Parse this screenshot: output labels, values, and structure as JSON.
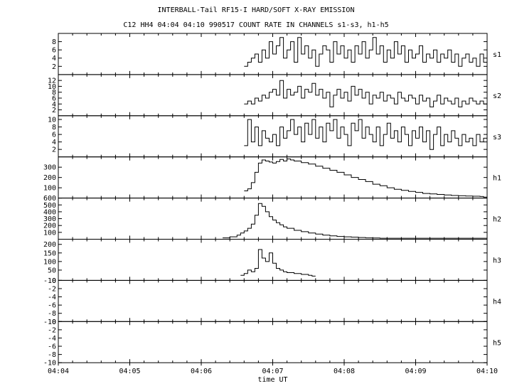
{
  "title_line1": "INTERBALL-Tail RF15-I HARD/SOFT X-RAY EMISSION",
  "title_line2": "C12 HH4 04:04 04:10 990517  COUNT RATE IN CHANNELS s1-s3, h1-h5",
  "chart_data": {
    "type": "line",
    "title": "INTERBALL-Tail RF15-I HARD/SOFT X-RAY EMISSION",
    "subtitle": "C12 HH4 04:04 04:10 990517  COUNT RATE IN CHANNELS s1-s3, h1-h5",
    "xlabel": "time UT",
    "x_ticks": [
      "04:04",
      "04:05",
      "04:06",
      "04:07",
      "04:08",
      "04:09",
      "04:10"
    ],
    "xlim_minutes": [
      0,
      6
    ],
    "panels": [
      {
        "name": "s1",
        "ylim": [
          0,
          10
        ],
        "yticks": [
          "2",
          "4",
          "6",
          "8"
        ],
        "x": [
          2.6,
          2.65,
          2.7,
          2.75,
          2.8,
          2.85,
          2.9,
          2.95,
          3.0,
          3.05,
          3.1,
          3.15,
          3.2,
          3.25,
          3.3,
          3.35,
          3.4,
          3.45,
          3.5,
          3.55,
          3.6,
          3.65,
          3.7,
          3.75,
          3.8,
          3.85,
          3.9,
          3.95,
          4.0,
          4.05,
          4.1,
          4.15,
          4.2,
          4.25,
          4.3,
          4.35,
          4.4,
          4.45,
          4.5,
          4.55,
          4.6,
          4.65,
          4.7,
          4.75,
          4.8,
          4.85,
          4.9,
          4.95,
          5.0,
          5.05,
          5.1,
          5.15,
          5.2,
          5.25,
          5.3,
          5.35,
          5.4,
          5.45,
          5.5,
          5.55,
          5.6,
          5.65,
          5.7,
          5.75,
          5.8,
          5.85,
          5.9,
          5.95
        ],
        "values": [
          2,
          3,
          4,
          5,
          3,
          6,
          4,
          8,
          5,
          7,
          9,
          4,
          6,
          8,
          3,
          9,
          5,
          7,
          4,
          6,
          2,
          5,
          7,
          6,
          3,
          8,
          5,
          7,
          4,
          6,
          3,
          7,
          5,
          8,
          4,
          6,
          9,
          5,
          7,
          3,
          6,
          4,
          8,
          5,
          7,
          3,
          6,
          4,
          5,
          7,
          3,
          5,
          4,
          6,
          3,
          5,
          4,
          6,
          3,
          5,
          2,
          4,
          5,
          3,
          4,
          2,
          5,
          3
        ]
      },
      {
        "name": "s2",
        "ylim": [
          0,
          14
        ],
        "yticks": [
          "2",
          "4",
          "6",
          "8",
          "10",
          "12"
        ],
        "x": [
          2.6,
          2.65,
          2.7,
          2.75,
          2.8,
          2.85,
          2.9,
          2.95,
          3.0,
          3.05,
          3.1,
          3.15,
          3.2,
          3.25,
          3.3,
          3.35,
          3.4,
          3.45,
          3.5,
          3.55,
          3.6,
          3.65,
          3.7,
          3.75,
          3.8,
          3.85,
          3.9,
          3.95,
          4.0,
          4.05,
          4.1,
          4.15,
          4.2,
          4.25,
          4.3,
          4.35,
          4.4,
          4.45,
          4.5,
          4.55,
          4.6,
          4.65,
          4.7,
          4.75,
          4.8,
          4.85,
          4.9,
          4.95,
          5.0,
          5.05,
          5.1,
          5.15,
          5.2,
          5.25,
          5.3,
          5.35,
          5.4,
          5.45,
          5.5,
          5.55,
          5.6,
          5.65,
          5.7,
          5.75,
          5.8,
          5.85,
          5.9,
          5.95
        ],
        "values": [
          4,
          5,
          4,
          6,
          5,
          7,
          6,
          8,
          9,
          7,
          12,
          6,
          9,
          7,
          8,
          10,
          6,
          9,
          8,
          11,
          7,
          9,
          6,
          8,
          3,
          7,
          9,
          6,
          8,
          5,
          10,
          7,
          9,
          6,
          8,
          4,
          7,
          6,
          8,
          5,
          7,
          6,
          4,
          8,
          6,
          5,
          7,
          6,
          4,
          7,
          5,
          6,
          3,
          5,
          7,
          4,
          6,
          5,
          4,
          6,
          3,
          5,
          4,
          6,
          5,
          4,
          5,
          4
        ]
      },
      {
        "name": "s3",
        "ylim": [
          0,
          11
        ],
        "yticks": [
          "2",
          "4",
          "6",
          "8",
          "10"
        ],
        "x": [
          2.6,
          2.65,
          2.7,
          2.75,
          2.8,
          2.85,
          2.9,
          2.95,
          3.0,
          3.05,
          3.1,
          3.15,
          3.2,
          3.25,
          3.3,
          3.35,
          3.4,
          3.45,
          3.5,
          3.55,
          3.6,
          3.65,
          3.7,
          3.75,
          3.8,
          3.85,
          3.9,
          3.95,
          4.0,
          4.05,
          4.1,
          4.15,
          4.2,
          4.25,
          4.3,
          4.35,
          4.4,
          4.45,
          4.5,
          4.55,
          4.6,
          4.65,
          4.7,
          4.75,
          4.8,
          4.85,
          4.9,
          4.95,
          5.0,
          5.05,
          5.1,
          5.15,
          5.2,
          5.25,
          5.3,
          5.35,
          5.4,
          5.45,
          5.5,
          5.55,
          5.6,
          5.65,
          5.7,
          5.75,
          5.8,
          5.85,
          5.9,
          5.95
        ],
        "values": [
          3,
          10,
          4,
          8,
          3,
          7,
          5,
          4,
          6,
          3,
          8,
          5,
          7,
          10,
          6,
          8,
          4,
          9,
          6,
          10,
          5,
          8,
          4,
          9,
          7,
          10,
          5,
          8,
          6,
          3,
          9,
          7,
          10,
          5,
          8,
          6,
          4,
          8,
          3,
          6,
          9,
          5,
          7,
          4,
          8,
          6,
          3,
          7,
          5,
          8,
          4,
          7,
          2,
          6,
          8,
          3,
          6,
          4,
          7,
          5,
          3,
          6,
          4,
          5,
          3,
          6,
          4,
          5
        ]
      },
      {
        "name": "h1",
        "ylim": [
          0,
          400
        ],
        "yticks": [
          "100",
          "200",
          "300"
        ],
        "x": [
          2.6,
          2.65,
          2.7,
          2.75,
          2.8,
          2.85,
          2.9,
          2.95,
          3.0,
          3.05,
          3.1,
          3.15,
          3.2,
          3.25,
          3.3,
          3.4,
          3.5,
          3.6,
          3.7,
          3.8,
          3.9,
          4.0,
          4.1,
          4.2,
          4.3,
          4.4,
          4.5,
          4.6,
          4.7,
          4.8,
          4.9,
          5.0,
          5.1,
          5.2,
          5.3,
          5.4,
          5.5,
          5.6,
          5.7,
          5.8,
          5.9,
          5.95
        ],
        "values": [
          70,
          90,
          150,
          250,
          340,
          370,
          360,
          350,
          340,
          355,
          375,
          360,
          380,
          370,
          360,
          345,
          330,
          310,
          290,
          270,
          250,
          225,
          200,
          180,
          160,
          135,
          120,
          100,
          85,
          75,
          65,
          55,
          45,
          40,
          35,
          30,
          25,
          22,
          20,
          18,
          15,
          10
        ]
      },
      {
        "name": "h2",
        "ylim": [
          0,
          600
        ],
        "yticks": [
          "100",
          "200",
          "300",
          "400",
          "500",
          "600"
        ],
        "x": [
          2.3,
          2.4,
          2.5,
          2.55,
          2.6,
          2.65,
          2.7,
          2.75,
          2.8,
          2.85,
          2.9,
          2.95,
          3.0,
          3.05,
          3.1,
          3.15,
          3.2,
          3.3,
          3.4,
          3.5,
          3.6,
          3.7,
          3.8,
          3.9,
          4.0,
          4.1,
          4.2,
          4.3,
          4.4,
          4.5,
          5.95
        ],
        "values": [
          20,
          35,
          60,
          90,
          120,
          160,
          220,
          350,
          520,
          480,
          400,
          330,
          280,
          240,
          210,
          180,
          160,
          130,
          110,
          90,
          75,
          60,
          50,
          40,
          35,
          30,
          25,
          20,
          18,
          15,
          15
        ]
      },
      {
        "name": "h3",
        "ylim": [
          -10,
          230
        ],
        "yticks": [
          "-10",
          "50",
          "100",
          "150",
          "200"
        ],
        "x": [
          2.55,
          2.6,
          2.65,
          2.7,
          2.75,
          2.8,
          2.85,
          2.9,
          2.95,
          3.0,
          3.05,
          3.1,
          3.15,
          3.2,
          3.3,
          3.4,
          3.5,
          3.55
        ],
        "values": [
          20,
          30,
          50,
          40,
          60,
          170,
          120,
          100,
          150,
          90,
          60,
          50,
          40,
          35,
          30,
          25,
          20,
          15
        ]
      },
      {
        "name": "h4",
        "ylim": [
          -10,
          0
        ],
        "yticks": [
          "-10",
          "-8",
          "-6",
          "-4",
          "-2",
          "0"
        ],
        "x": [],
        "values": []
      },
      {
        "name": "h5",
        "ylim": [
          -10,
          0
        ],
        "yticks": [
          "-10",
          "-8",
          "-6",
          "-4",
          "-2",
          "0"
        ],
        "x": [],
        "values": []
      }
    ],
    "grid": false,
    "legend": "none"
  }
}
